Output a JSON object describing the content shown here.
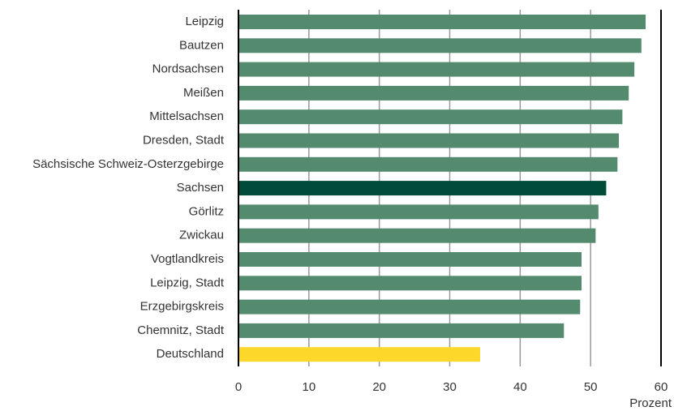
{
  "chart_data": {
    "type": "barh",
    "categories": [
      "Leipzig",
      "Bautzen",
      "Nordsachsen",
      "Meißen",
      "Mittelsachsen",
      "Dresden, Stadt",
      "Sächsische Schweiz-Osterzgebirge",
      "Sachsen",
      "Görlitz",
      "Zwickau",
      "Vogtlandkreis",
      "Leipzig, Stadt",
      "Erzgebirgskreis",
      "Chemnitz, Stadt",
      "Deutschland"
    ],
    "values": [
      57.7,
      57.1,
      56.1,
      55.3,
      54.4,
      53.9,
      53.7,
      52.1,
      51.0,
      50.6,
      48.6,
      48.6,
      48.4,
      46.1,
      34.2
    ],
    "colors": [
      "#548b6f",
      "#548b6f",
      "#548b6f",
      "#548b6f",
      "#548b6f",
      "#548b6f",
      "#548b6f",
      "#004b3a",
      "#548b6f",
      "#548b6f",
      "#548b6f",
      "#548b6f",
      "#548b6f",
      "#548b6f",
      "#fdd82a"
    ],
    "xlabel": "Prozent",
    "xlim": [
      0,
      60
    ],
    "xticks": [
      0,
      10,
      20,
      30,
      40,
      50,
      60
    ],
    "grid": true
  }
}
